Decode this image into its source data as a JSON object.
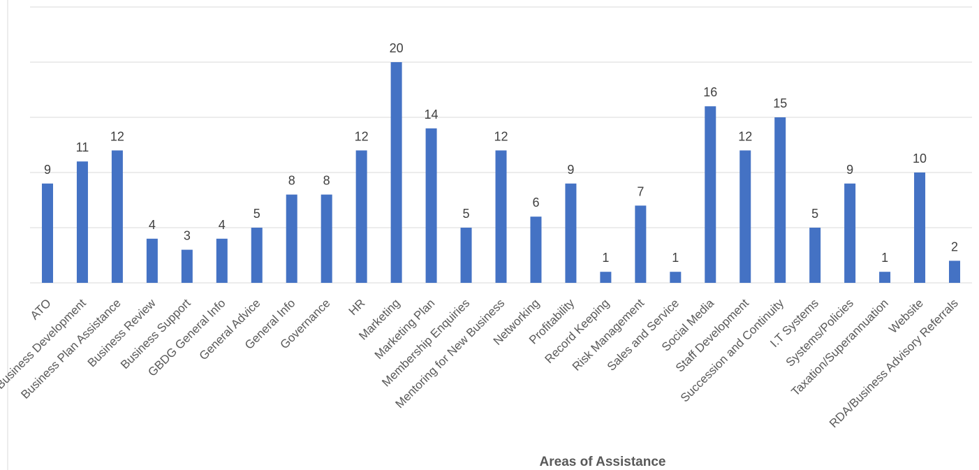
{
  "chart_data": {
    "type": "bar",
    "title": "",
    "xlabel": "Areas of Assistance",
    "ylabel": "",
    "ylim": [
      0,
      25
    ],
    "grid": true,
    "legend": "none",
    "color": "#4472C4",
    "categories": [
      "ATO",
      "Business Development",
      "Business Plan Assistance",
      "Business Review",
      "Business Support",
      "GBDG General Info",
      "General Advice",
      "General Info",
      "Governance",
      "HR",
      "Marketing",
      "Marketing Plan",
      "Membership Enquiries",
      "Mentoring for New Business",
      "Networking",
      "Profitability",
      "Record Keeping",
      "Risk Management",
      "Sales and Service",
      "Social Media",
      "Staff Development",
      "Succession and Continuity",
      "I.T Systems",
      "Systems/Policies",
      "Taxation/Superannuation",
      "Website",
      "RDA/Business Advisory Referrals"
    ],
    "values": [
      9,
      11,
      12,
      4,
      3,
      4,
      5,
      8,
      8,
      12,
      20,
      14,
      5,
      12,
      6,
      9,
      1,
      7,
      1,
      16,
      12,
      15,
      5,
      9,
      1,
      10,
      2
    ]
  }
}
